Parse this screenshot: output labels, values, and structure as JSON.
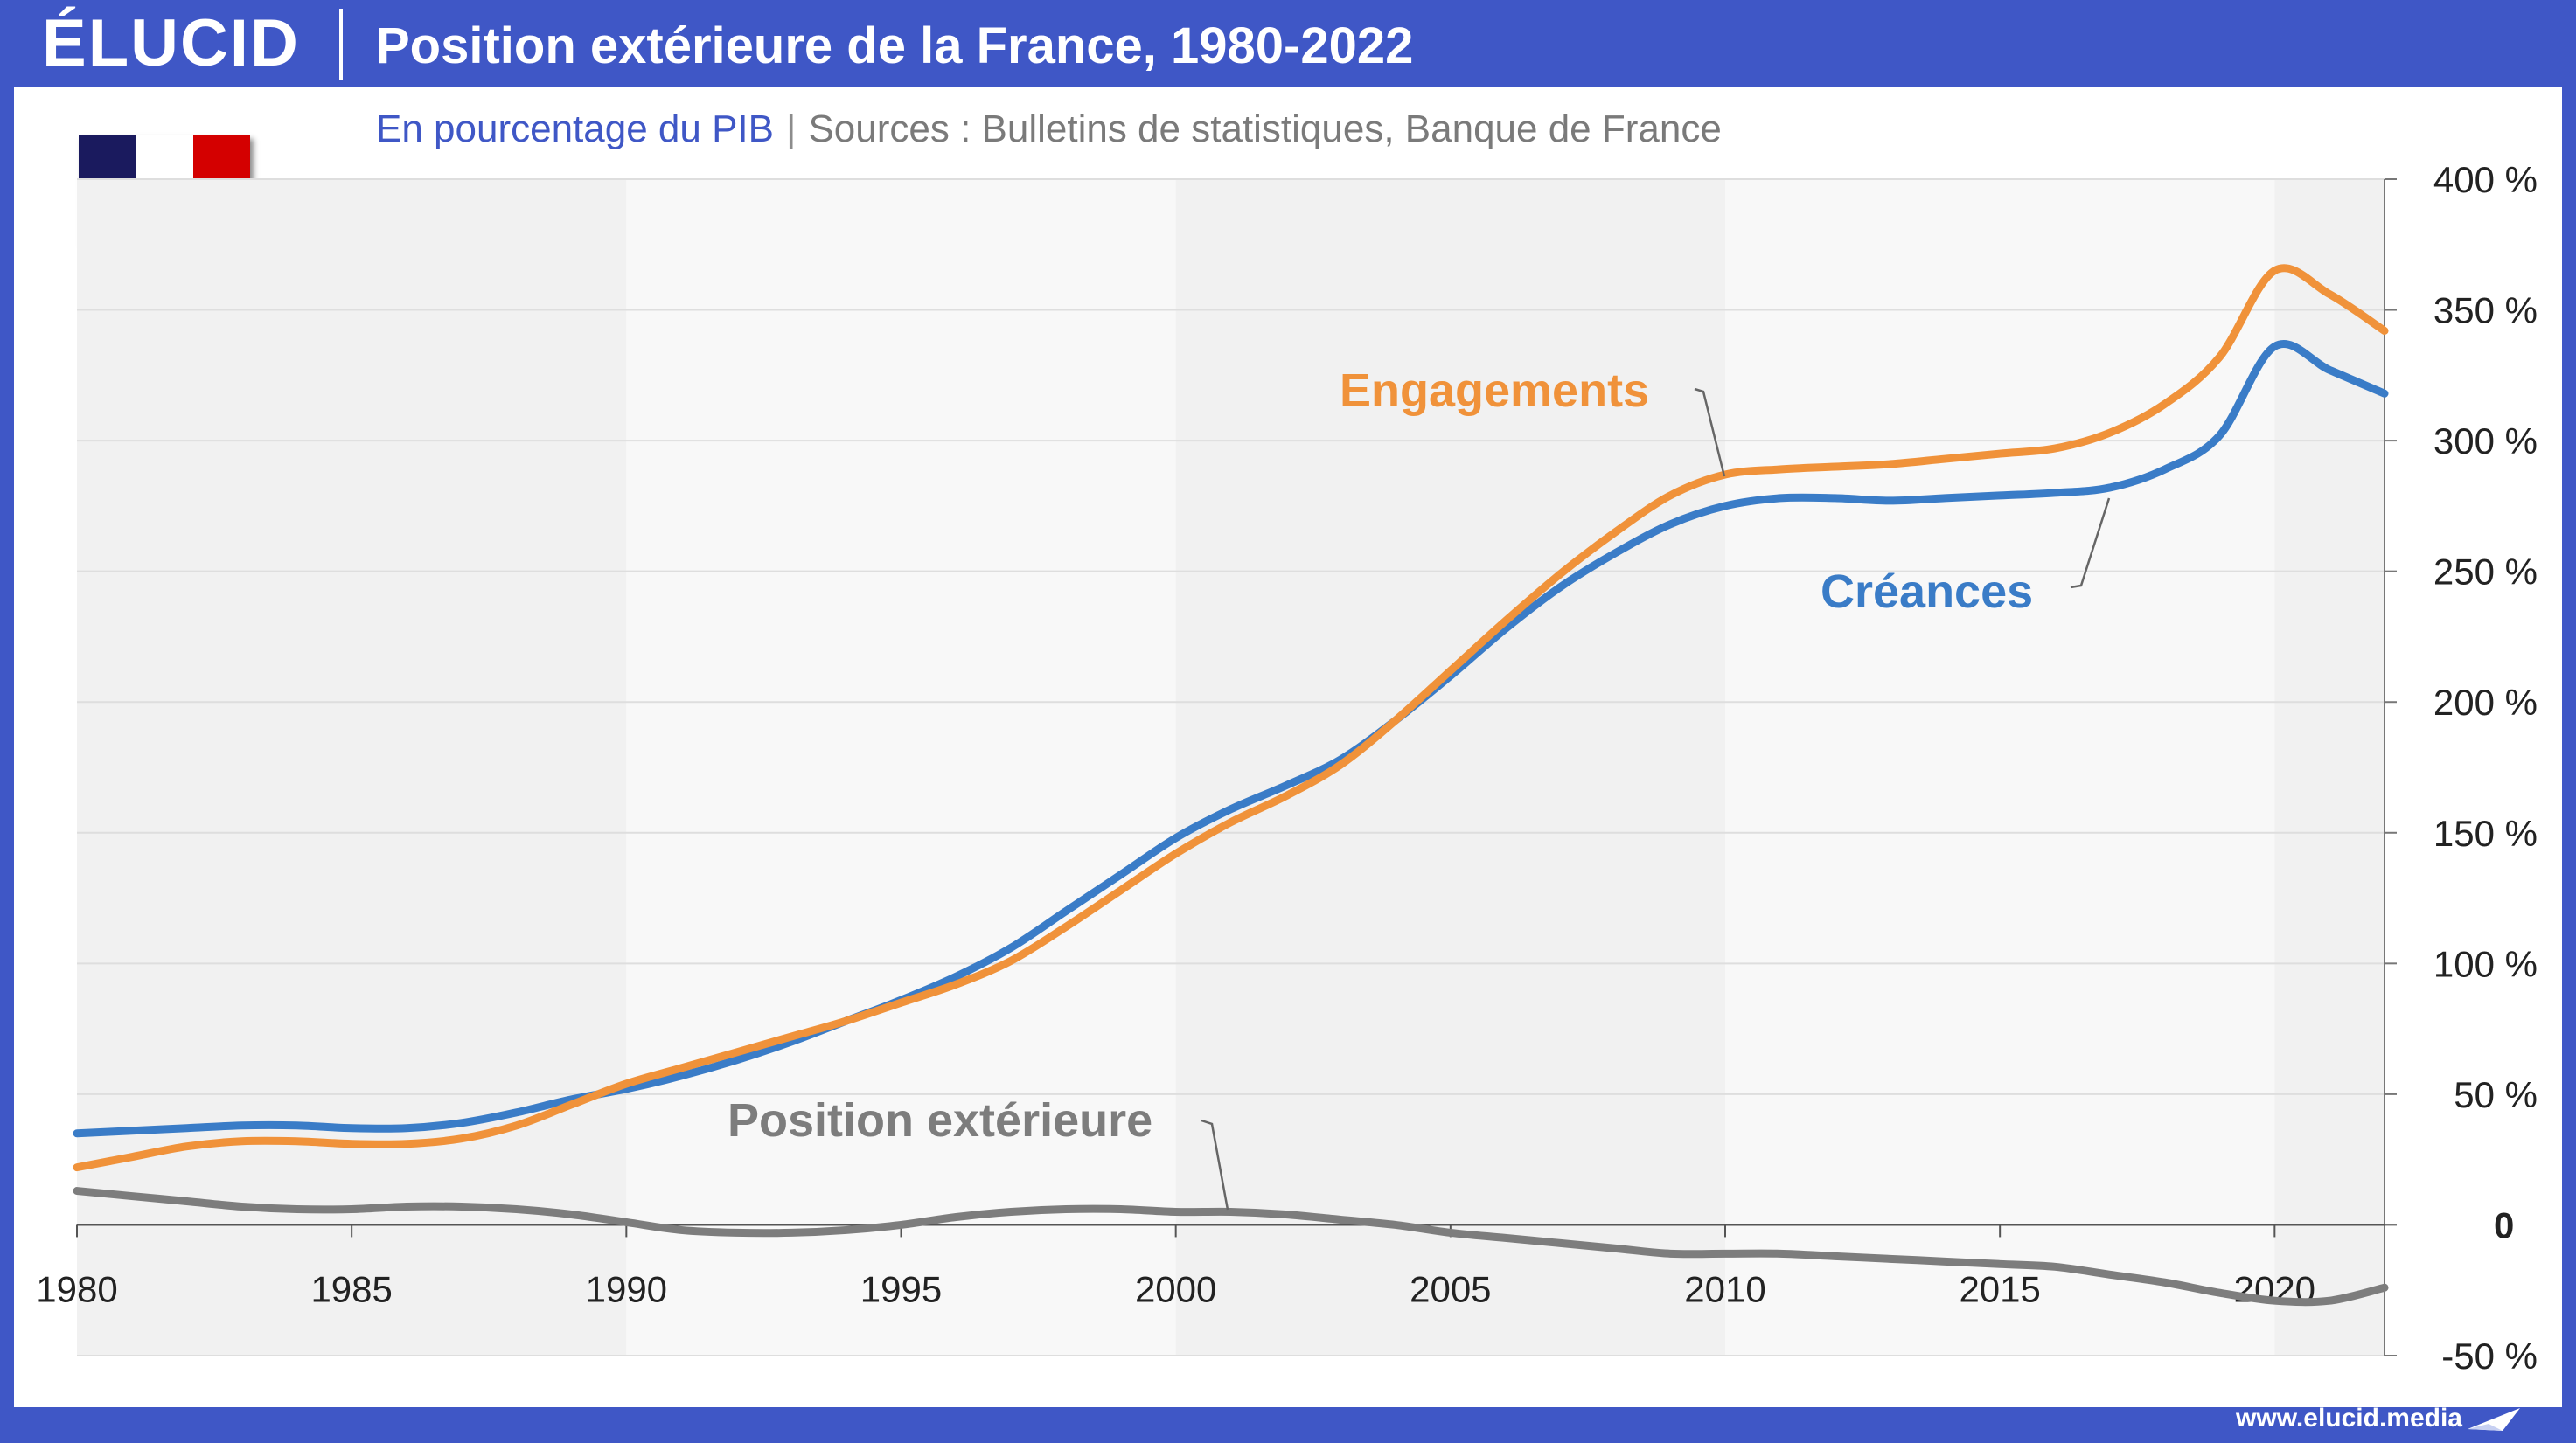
{
  "header": {
    "logo_text": "ÉLUCID",
    "title": "Position extérieure de la France, 1980-2022"
  },
  "subtitle": {
    "unit": "En pourcentage du PIB",
    "separator": "|",
    "sources": "Sources : Bulletins de statistiques, Banque de France"
  },
  "flag": {
    "colors": [
      "#1a1a5e",
      "#ffffff",
      "#d40000"
    ]
  },
  "footer": {
    "url": "www.elucid.media"
  },
  "colors": {
    "brand": "#3f57c6",
    "engagements": "#f0923a",
    "creances": "#3a7cc7",
    "position": "#7d7d7d",
    "negative_tick": "#e0201c"
  },
  "chart_data": {
    "type": "line",
    "title": "Position extérieure de la France, 1980-2022",
    "subtitle": "En pourcentage du PIB",
    "xlabel": "",
    "ylabel": "",
    "xlim": [
      1980,
      2022
    ],
    "ylim": [
      -50,
      400
    ],
    "grid": true,
    "x_ticks": [
      "1980",
      "1985",
      "1990",
      "1995",
      "2000",
      "2005",
      "2010",
      "2015",
      "2020"
    ],
    "y_ticks": [
      {
        "value": 400,
        "label": "400 %"
      },
      {
        "value": 350,
        "label": "350 %"
      },
      {
        "value": 300,
        "label": "300 %"
      },
      {
        "value": 250,
        "label": "250 %"
      },
      {
        "value": 200,
        "label": "200 %"
      },
      {
        "value": 150,
        "label": "150 %"
      },
      {
        "value": 100,
        "label": "100 %"
      },
      {
        "value": 50,
        "label": "50 %"
      },
      {
        "value": 0,
        "label": "0"
      },
      {
        "value": -50,
        "label": "-50 %"
      }
    ],
    "x": [
      1980,
      1981,
      1982,
      1983,
      1984,
      1985,
      1986,
      1987,
      1988,
      1989,
      1990,
      1991,
      1992,
      1993,
      1994,
      1995,
      1996,
      1997,
      1998,
      1999,
      2000,
      2001,
      2002,
      2003,
      2004,
      2005,
      2006,
      2007,
      2008,
      2009,
      2010,
      2011,
      2012,
      2013,
      2014,
      2015,
      2016,
      2017,
      2018,
      2019,
      2020,
      2021,
      2022
    ],
    "series": [
      {
        "name": "Engagements",
        "key": "engagements",
        "values": [
          22,
          26,
          30,
          32,
          32,
          31,
          31,
          33,
          38,
          46,
          54,
          60,
          66,
          72,
          78,
          85,
          92,
          101,
          114,
          128,
          142,
          154,
          164,
          176,
          193,
          212,
          231,
          249,
          265,
          279,
          287,
          289,
          290,
          291,
          293,
          295,
          297,
          303,
          314,
          332,
          365,
          356,
          342
        ]
      },
      {
        "name": "Créances",
        "key": "creances",
        "values": [
          35,
          36,
          37,
          38,
          38,
          37,
          37,
          39,
          43,
          48,
          52,
          57,
          63,
          70,
          78,
          86,
          95,
          106,
          120,
          134,
          148,
          159,
          168,
          178,
          193,
          210,
          228,
          244,
          257,
          268,
          275,
          278,
          278,
          277,
          278,
          279,
          280,
          282,
          289,
          302,
          336,
          327,
          318
        ]
      },
      {
        "name": "Position extérieure",
        "key": "position",
        "values": [
          13,
          11,
          9,
          7,
          6,
          6,
          7,
          7,
          6,
          4,
          1,
          -2,
          -3,
          -3,
          -2,
          0,
          3,
          5,
          6,
          6,
          5,
          5,
          4,
          2,
          0,
          -3,
          -5,
          -7,
          -9,
          -11,
          -11,
          -11,
          -12,
          -13,
          -14,
          -15,
          -16,
          -19,
          -22,
          -26,
          -29,
          -29,
          -24
        ]
      }
    ],
    "labels": [
      {
        "text": "Engagements",
        "series": "engagements"
      },
      {
        "text": "Créances",
        "series": "creances"
      },
      {
        "text": "Position extérieure",
        "series": "position"
      }
    ]
  }
}
